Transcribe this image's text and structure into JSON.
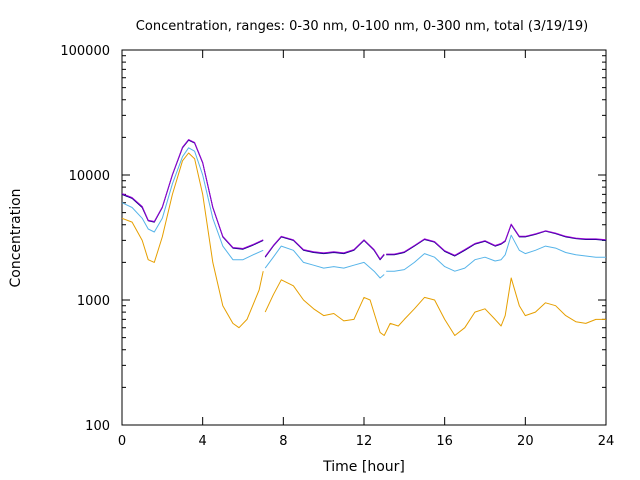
{
  "chart_data": {
    "type": "line",
    "title": "Concentration, ranges: 0-30 nm, 0-100 nm, 0-300 nm, total (3/19/19)",
    "xlabel": "Time [hour]",
    "ylabel": "Concentration",
    "xlim": [
      0,
      24
    ],
    "ylim": [
      100,
      100000
    ],
    "yscale": "log",
    "grid": false,
    "legend": "none",
    "x_ticks": [
      {
        "value": 0,
        "label": "0"
      },
      {
        "value": 4,
        "label": "4"
      },
      {
        "value": 8,
        "label": "8"
      },
      {
        "value": 12,
        "label": "12"
      },
      {
        "value": 16,
        "label": "16"
      },
      {
        "value": 20,
        "label": "20"
      },
      {
        "value": 24,
        "label": "24"
      }
    ],
    "y_ticks": [
      {
        "value": 100,
        "label": "100"
      },
      {
        "value": 1000,
        "label": "1000"
      },
      {
        "value": 10000,
        "label": "10000"
      },
      {
        "value": 100000,
        "label": "100000"
      }
    ],
    "series": [
      {
        "color": "#e69f00",
        "x": [
          0,
          0.5,
          1.0,
          1.3,
          1.6,
          2.0,
          2.5,
          3.0,
          3.3,
          3.6,
          4.0,
          4.5,
          5.0,
          5.5,
          5.8,
          6.2,
          6.8,
          7.0,
          null,
          7.1,
          7.5,
          7.9,
          8.5,
          9.0,
          9.5,
          10.0,
          10.5,
          11.0,
          11.5,
          12.0,
          12.3,
          12.6,
          12.8,
          13.0,
          13.3,
          13.7,
          14.0,
          14.5,
          15.0,
          15.5,
          16.0,
          16.5,
          17.0,
          17.5,
          18.0,
          18.5,
          18.8,
          19.0,
          19.3,
          19.7,
          20.0,
          20.5,
          21.0,
          21.5,
          22.0,
          22.5,
          23.0,
          23.5,
          24.0
        ],
        "y": [
          4500,
          4200,
          3000,
          2100,
          2000,
          3200,
          7000,
          13000,
          15000,
          13500,
          7000,
          2000,
          900,
          650,
          600,
          700,
          1200,
          1700,
          null,
          800,
          1100,
          1450,
          1300,
          1000,
          850,
          750,
          780,
          680,
          700,
          1050,
          1000,
          700,
          550,
          520,
          650,
          620,
          700,
          850,
          1050,
          1000,
          700,
          520,
          600,
          800,
          850,
          700,
          620,
          750,
          1500,
          900,
          750,
          800,
          950,
          900,
          750,
          670,
          650,
          700,
          700
        ]
      },
      {
        "color": "#56b4e9",
        "x": [
          0,
          0.5,
          1.0,
          1.3,
          1.6,
          2.0,
          2.5,
          3.0,
          3.3,
          3.6,
          4.0,
          4.5,
          5.0,
          5.5,
          6.0,
          6.5,
          7.0,
          null,
          7.1,
          7.5,
          7.9,
          8.5,
          9.0,
          9.5,
          10.0,
          10.5,
          11.0,
          11.5,
          12.0,
          12.5,
          12.8,
          13.0,
          null,
          13.1,
          13.5,
          14.0,
          14.5,
          15.0,
          15.5,
          16.0,
          16.5,
          17.0,
          17.5,
          18.0,
          18.5,
          18.8,
          19.0,
          19.3,
          19.7,
          20.0,
          20.5,
          21.0,
          21.5,
          22.0,
          22.5,
          23.0,
          23.5,
          24.0
        ],
        "y": [
          6000,
          5500,
          4500,
          3700,
          3500,
          4500,
          8500,
          14000,
          16500,
          15500,
          10000,
          4500,
          2700,
          2100,
          2100,
          2300,
          2500,
          null,
          1800,
          2200,
          2700,
          2500,
          2000,
          1900,
          1800,
          1850,
          1800,
          1900,
          2000,
          1700,
          1500,
          1600,
          null,
          1700,
          1700,
          1750,
          2000,
          2350,
          2200,
          1850,
          1700,
          1800,
          2100,
          2200,
          2050,
          2100,
          2300,
          3300,
          2500,
          2350,
          2500,
          2700,
          2600,
          2400,
          2300,
          2250,
          2200,
          2200
        ]
      },
      {
        "color": "#000080",
        "x": [
          0,
          0.5,
          1.0,
          1.3,
          1.6,
          2.0,
          2.5,
          3.0,
          3.3,
          3.6,
          4.0,
          4.5,
          5.0,
          5.5,
          6.0,
          6.5,
          7.0,
          null,
          7.1,
          7.5,
          7.9,
          8.5,
          9.0,
          9.5,
          10.0,
          10.5,
          11.0,
          11.5,
          12.0,
          12.5,
          12.8,
          13.0,
          null,
          13.1,
          13.5,
          14.0,
          14.5,
          15.0,
          15.5,
          16.0,
          16.5,
          17.0,
          17.5,
          18.0,
          18.5,
          18.8,
          19.0,
          19.3,
          19.7,
          20.0,
          20.5,
          21.0,
          21.5,
          22.0,
          22.5,
          23.0,
          23.5,
          24.0
        ],
        "y": [
          7000,
          6500,
          5500,
          4300,
          4200,
          5500,
          10000,
          16500,
          19000,
          18000,
          12500,
          5500,
          3200,
          2600,
          2550,
          2750,
          3000,
          null,
          2200,
          2700,
          3200,
          3000,
          2500,
          2400,
          2350,
          2400,
          2350,
          2500,
          3000,
          2500,
          2100,
          2300,
          null,
          2300,
          2300,
          2400,
          2700,
          3050,
          2900,
          2450,
          2250,
          2500,
          2800,
          2950,
          2700,
          2800,
          2950,
          4000,
          3200,
          3200,
          3350,
          3550,
          3400,
          3200,
          3100,
          3050,
          3050,
          3000
        ]
      },
      {
        "color": "#9400d3",
        "x": [
          0,
          0.5,
          1.0,
          1.3,
          1.6,
          2.0,
          2.5,
          3.0,
          3.3,
          3.6,
          4.0,
          4.5,
          5.0,
          5.5,
          6.0,
          6.5,
          7.0,
          null,
          7.1,
          7.5,
          7.9,
          8.5,
          9.0,
          9.5,
          10.0,
          10.5,
          11.0,
          11.5,
          12.0,
          12.5,
          12.8,
          13.0,
          null,
          13.1,
          13.5,
          14.0,
          14.5,
          15.0,
          15.5,
          16.0,
          16.5,
          17.0,
          17.5,
          18.0,
          18.5,
          18.8,
          19.0,
          19.3,
          19.7,
          20.0,
          20.5,
          21.0,
          21.5,
          22.0,
          22.5,
          23.0,
          23.5,
          24.0
        ],
        "y": [
          7100,
          6600,
          5600,
          4350,
          4250,
          5550,
          10100,
          16700,
          19200,
          18200,
          12600,
          5550,
          3230,
          2630,
          2580,
          2780,
          3030,
          null,
          2230,
          2730,
          3230,
          3030,
          2530,
          2430,
          2380,
          2430,
          2380,
          2530,
          3030,
          2530,
          2130,
          2330,
          null,
          2330,
          2330,
          2430,
          2730,
          3080,
          2930,
          2480,
          2280,
          2530,
          2830,
          2980,
          2730,
          2830,
          2980,
          4050,
          3230,
          3230,
          3380,
          3580,
          3430,
          3230,
          3130,
          3080,
          3080,
          3030
        ]
      }
    ]
  }
}
